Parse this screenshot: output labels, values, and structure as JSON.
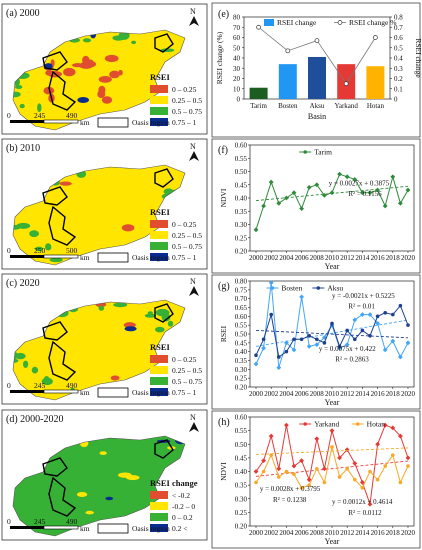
{
  "maps": [
    {
      "label": "(a) 2000",
      "legend_title": "RSEI",
      "classes": [
        "0 – 0.25",
        "0.25 – 0.5",
        "0.5 – 0.75",
        "0.75 – 1"
      ],
      "class_colors": [
        "#e04e2f",
        "#ffe500",
        "#37b036",
        "#0b2c8f"
      ],
      "scale": [
        "0",
        "245",
        "490",
        "km"
      ],
      "oasis_label": "Oasis region",
      "fill_share": [
        0.18,
        0.52,
        0.27,
        0.03
      ]
    },
    {
      "label": "(b) 2010",
      "legend_title": "RSEI",
      "classes": [
        "0 – 0.25",
        "0.25 – 0.5",
        "0.5 – 0.75",
        "0.75 – 1"
      ],
      "class_colors": [
        "#e04e2f",
        "#ffe500",
        "#37b036",
        "#0b2c8f"
      ],
      "scale": [
        "0",
        "250",
        "500",
        "km"
      ],
      "oasis_label": "Oasis region",
      "fill_share": [
        0.02,
        0.66,
        0.3,
        0.02
      ]
    },
    {
      "label": "(c) 2020",
      "legend_title": "RSEI",
      "classes": [
        "0 – 0.25",
        "0.25 – 0.5",
        "0.5 – 0.75",
        "0.75 – 1"
      ],
      "class_colors": [
        "#e04e2f",
        "#ffe500",
        "#37b036",
        "#0b2c8f"
      ],
      "scale": [
        "0",
        "245",
        "490",
        "km"
      ],
      "oasis_label": "Oasis region",
      "fill_share": [
        0.03,
        0.62,
        0.33,
        0.02
      ]
    },
    {
      "label": "(d) 2000-2020",
      "legend_title": "RSEI change",
      "classes": [
        "< -0.2",
        "-0.2 – 0",
        "0 – 0.2",
        "0.2 <"
      ],
      "class_colors": [
        "#e04e2f",
        "#ffe500",
        "#37b036",
        "#0b2c8f"
      ],
      "scale": [
        "0",
        "245",
        "490",
        "km"
      ],
      "oasis_label": "Oasis region",
      "fill_share": [
        0.02,
        0.1,
        0.83,
        0.05
      ]
    }
  ],
  "north_label": "N",
  "chart_data": [
    {
      "panel": "(e)",
      "type": "bar",
      "categories": [
        "Tarim",
        "Bosten",
        "Aksu",
        "Yarkand",
        "Hotan"
      ],
      "xlabel": "Basin",
      "ylabel": "RSEI change (%)",
      "y2label": "RSEI change",
      "ylim": [
        0,
        80
      ],
      "y2lim": [
        0,
        0.8
      ],
      "yticks": [
        0,
        10,
        20,
        30,
        40,
        50,
        60,
        70,
        80
      ],
      "y2ticks": [
        0,
        0.1,
        0.2,
        0.3,
        0.4,
        0.5,
        0.6,
        0.7,
        0.8
      ],
      "bar_colors": [
        "#1b5e20",
        "#2196f3",
        "#1f4e9a",
        "#e53935",
        "#ffb300"
      ],
      "series": [
        {
          "name": "RSEI change",
          "axis": "left",
          "values": [
            11,
            34,
            41,
            34,
            32
          ]
        },
        {
          "name": "RSEI change %",
          "axis": "right",
          "values": [
            0.7,
            0.47,
            0.57,
            0.15,
            0.6
          ]
        }
      ]
    },
    {
      "panel": "(f)",
      "type": "line",
      "x": [
        2000,
        2001,
        2002,
        2003,
        2004,
        2005,
        2006,
        2007,
        2008,
        2009,
        2010,
        2011,
        2012,
        2013,
        2014,
        2015,
        2016,
        2017,
        2018,
        2019,
        2020
      ],
      "xticks": [
        "2000",
        "2002",
        "2004",
        "2006",
        "2008",
        "2010",
        "2012",
        "2014",
        "2016",
        "2018",
        "2020"
      ],
      "xlabel": "Year",
      "ylabel": "NDVI",
      "ylim": [
        0.2,
        0.6
      ],
      "yticks": [
        "0.20",
        "0.25",
        "0.30",
        "0.35",
        "0.40",
        "0.45",
        "0.50",
        "0.55",
        "0.60"
      ],
      "series": [
        {
          "name": "Tarim",
          "color": "#2e8b3a",
          "values": [
            0.28,
            0.37,
            0.46,
            0.38,
            0.4,
            0.42,
            0.36,
            0.44,
            0.45,
            0.41,
            0.42,
            0.49,
            0.48,
            0.47,
            0.42,
            0.42,
            0.43,
            0.37,
            0.48,
            0.38,
            0.43
          ],
          "trend": [
            0.3875,
            0.0027
          ]
        }
      ],
      "annotations": [
        {
          "text": "y = 0.0027x + 0.3875"
        },
        {
          "text": "R² = 0.1156"
        }
      ]
    },
    {
      "panel": "(g)",
      "type": "line",
      "x": [
        2000,
        2001,
        2002,
        2003,
        2004,
        2005,
        2006,
        2007,
        2008,
        2009,
        2010,
        2011,
        2012,
        2013,
        2014,
        2015,
        2016,
        2017,
        2018,
        2019,
        2020
      ],
      "xticks": [
        "2000",
        "2002",
        "2004",
        "2006",
        "2008",
        "2010",
        "2012",
        "2014",
        "2016",
        "2018",
        "2020"
      ],
      "xlabel": "Year",
      "ylabel": "RSEI",
      "ylim": [
        0.2,
        0.8
      ],
      "yticks": [
        "0.20",
        "0.25",
        "0.30",
        "0.35",
        "0.40",
        "0.45",
        "0.50",
        "0.55",
        "0.60",
        "0.65",
        "0.70",
        "0.75",
        "0.80"
      ],
      "series": [
        {
          "name": "Bosten",
          "color": "#42a5f5",
          "values": [
            0.33,
            0.42,
            0.79,
            0.31,
            0.45,
            0.41,
            0.71,
            0.43,
            0.44,
            0.48,
            0.55,
            0.42,
            0.44,
            0.58,
            0.61,
            0.61,
            0.56,
            0.41,
            0.46,
            0.37,
            0.45
          ],
          "trend": [
            0.422,
            0.0075
          ]
        },
        {
          "name": "Aksu",
          "color": "#1f3f8f",
          "values": [
            0.38,
            0.47,
            0.61,
            0.37,
            0.4,
            0.47,
            0.47,
            0.49,
            0.47,
            0.45,
            0.56,
            0.43,
            0.52,
            0.47,
            0.52,
            0.49,
            0.6,
            0.62,
            0.61,
            0.66,
            0.55
          ],
          "trend": [
            0.5225,
            -0.0021
          ]
        }
      ],
      "annotations": [
        {
          "text": "y = -0.0021x + 0.5225"
        },
        {
          "text": "R² = 0.01"
        },
        {
          "text": "y = 0.0075x + 0.422"
        },
        {
          "text": "R² = 0.2863"
        }
      ]
    },
    {
      "panel": "(h)",
      "type": "line",
      "x": [
        2000,
        2001,
        2002,
        2003,
        2004,
        2005,
        2006,
        2007,
        2008,
        2009,
        2010,
        2011,
        2012,
        2013,
        2014,
        2015,
        2016,
        2017,
        2018,
        2019,
        2020
      ],
      "xticks": [
        "2000",
        "2002",
        "2004",
        "2006",
        "2008",
        "2010",
        "2012",
        "2014",
        "2016",
        "2018",
        "2020"
      ],
      "xlabel": "Year",
      "ylabel": "NDVI",
      "ylim": [
        0.2,
        0.6
      ],
      "yticks": [
        "0.20",
        "0.25",
        "0.30",
        "0.35",
        "0.40",
        "0.45",
        "0.50",
        "0.55",
        "0.60"
      ],
      "series": [
        {
          "name": "Yarkand",
          "color": "#e53935",
          "values": [
            0.4,
            0.44,
            0.53,
            0.41,
            0.57,
            0.42,
            0.44,
            0.37,
            0.52,
            0.41,
            0.55,
            0.45,
            0.48,
            0.43,
            0.36,
            0.28,
            0.5,
            0.57,
            0.56,
            0.53,
            0.45
          ],
          "trend": [
            0.3795,
            0.0028
          ]
        },
        {
          "name": "Hotan",
          "color": "#f9a825",
          "values": [
            0.36,
            0.4,
            0.46,
            0.38,
            0.4,
            0.39,
            0.34,
            0.35,
            0.41,
            0.36,
            0.49,
            0.38,
            0.41,
            0.37,
            0.34,
            0.4,
            0.37,
            0.42,
            0.46,
            0.36,
            0.42
          ],
          "trend": [
            0.4614,
            0.0012
          ]
        }
      ],
      "annotations": [
        {
          "text": "y = 0.0028x + 0.3795"
        },
        {
          "text": "R² = 0.1238"
        },
        {
          "text": "y = 0.0012x + 0.4614"
        },
        {
          "text": "R² = 0.0112"
        }
      ]
    }
  ]
}
